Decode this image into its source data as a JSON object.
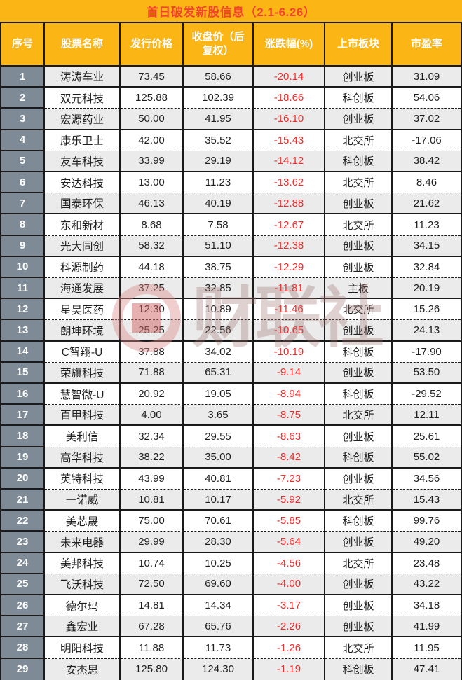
{
  "chart_data": {
    "type": "table",
    "title": "首日破发新股信息（2.1-6.26）",
    "columns": [
      "序号",
      "股票名称",
      "发行价格",
      "收盘价（后复权）",
      "涨跌幅(%)",
      "上市板块",
      "市盈率"
    ],
    "rows": [
      {
        "no": "1",
        "name": "涛涛车业",
        "issue": "73.45",
        "close": "58.66",
        "chg": "-20.14",
        "board": "创业板",
        "pe": "31.09"
      },
      {
        "no": "2",
        "name": "双元科技",
        "issue": "125.88",
        "close": "102.39",
        "chg": "-18.66",
        "board": "科创板",
        "pe": "54.06"
      },
      {
        "no": "3",
        "name": "宏源药业",
        "issue": "50.00",
        "close": "41.95",
        "chg": "-16.10",
        "board": "创业板",
        "pe": "37.02"
      },
      {
        "no": "4",
        "name": "康乐卫士",
        "issue": "42.00",
        "close": "35.52",
        "chg": "-15.43",
        "board": "北交所",
        "pe": "-17.06"
      },
      {
        "no": "5",
        "name": "友车科技",
        "issue": "33.99",
        "close": "29.19",
        "chg": "-14.12",
        "board": "科创板",
        "pe": "38.42"
      },
      {
        "no": "6",
        "name": "安达科技",
        "issue": "13.00",
        "close": "11.23",
        "chg": "-13.62",
        "board": "北交所",
        "pe": "8.46"
      },
      {
        "no": "7",
        "name": "国泰环保",
        "issue": "46.13",
        "close": "40.19",
        "chg": "-12.88",
        "board": "创业板",
        "pe": "21.62"
      },
      {
        "no": "8",
        "name": "东和新材",
        "issue": "8.68",
        "close": "7.58",
        "chg": "-12.67",
        "board": "北交所",
        "pe": "11.23"
      },
      {
        "no": "9",
        "name": "光大同创",
        "issue": "58.32",
        "close": "51.10",
        "chg": "-12.38",
        "board": "创业板",
        "pe": "34.15"
      },
      {
        "no": "10",
        "name": "科源制药",
        "issue": "44.18",
        "close": "38.75",
        "chg": "-12.29",
        "board": "创业板",
        "pe": "32.84"
      },
      {
        "no": "11",
        "name": "海通发展",
        "issue": "37.25",
        "close": "32.85",
        "chg": "-11.81",
        "board": "主板",
        "pe": "20.19"
      },
      {
        "no": "12",
        "name": "星昊医药",
        "issue": "12.30",
        "close": "10.89",
        "chg": "-11.46",
        "board": "北交所",
        "pe": "15.26"
      },
      {
        "no": "13",
        "name": "朗坤环境",
        "issue": "25.25",
        "close": "22.56",
        "chg": "-10.65",
        "board": "创业板",
        "pe": "24.13"
      },
      {
        "no": "14",
        "name": "C智翔-U",
        "issue": "37.88",
        "close": "34.02",
        "chg": "-10.19",
        "board": "科创板",
        "pe": "-17.90"
      },
      {
        "no": "15",
        "name": "荣旗科技",
        "issue": "71.88",
        "close": "65.31",
        "chg": "-9.14",
        "board": "创业板",
        "pe": "53.50"
      },
      {
        "no": "16",
        "name": "慧智微-U",
        "issue": "20.92",
        "close": "19.05",
        "chg": "-8.94",
        "board": "科创板",
        "pe": "-29.52"
      },
      {
        "no": "17",
        "name": "百甲科技",
        "issue": "4.00",
        "close": "3.65",
        "chg": "-8.75",
        "board": "北交所",
        "pe": "12.11"
      },
      {
        "no": "18",
        "name": "美利信",
        "issue": "32.34",
        "close": "29.55",
        "chg": "-8.63",
        "board": "创业板",
        "pe": "25.61"
      },
      {
        "no": "19",
        "name": "高华科技",
        "issue": "38.22",
        "close": "35.00",
        "chg": "-8.42",
        "board": "科创板",
        "pe": "55.02"
      },
      {
        "no": "20",
        "name": "英特科技",
        "issue": "43.99",
        "close": "40.81",
        "chg": "-7.23",
        "board": "创业板",
        "pe": "34.56"
      },
      {
        "no": "21",
        "name": "一诺威",
        "issue": "10.81",
        "close": "10.17",
        "chg": "-5.92",
        "board": "北交所",
        "pe": "15.43"
      },
      {
        "no": "22",
        "name": "美芯晟",
        "issue": "75.00",
        "close": "70.61",
        "chg": "-5.85",
        "board": "科创板",
        "pe": "99.76"
      },
      {
        "no": "23",
        "name": "未来电器",
        "issue": "29.99",
        "close": "28.30",
        "chg": "-5.64",
        "board": "创业板",
        "pe": "49.20"
      },
      {
        "no": "24",
        "name": "美邦科技",
        "issue": "10.74",
        "close": "10.25",
        "chg": "-4.56",
        "board": "北交所",
        "pe": "23.48"
      },
      {
        "no": "25",
        "name": "飞沃科技",
        "issue": "72.50",
        "close": "69.60",
        "chg": "-4.00",
        "board": "创业板",
        "pe": "43.22"
      },
      {
        "no": "26",
        "name": "德尔玛",
        "issue": "14.81",
        "close": "14.34",
        "chg": "-3.17",
        "board": "创业板",
        "pe": "34.18"
      },
      {
        "no": "27",
        "name": "鑫宏业",
        "issue": "67.28",
        "close": "65.76",
        "chg": "-2.26",
        "board": "创业板",
        "pe": "41.99"
      },
      {
        "no": "28",
        "name": "明阳科技",
        "issue": "11.88",
        "close": "11.73",
        "chg": "-1.26",
        "board": "北交所",
        "pe": "11.95"
      },
      {
        "no": "29",
        "name": "安杰思",
        "issue": "125.80",
        "close": "124.30",
        "chg": "-1.19",
        "board": "科创板",
        "pe": "47.41"
      }
    ],
    "layout": {
      "negative_change_color": "#f22b2b",
      "banner_color": "#fbb616",
      "title_color": "#f2432b",
      "serial_column_color": "#7e8a96",
      "alt_row_color": "#ebebeb",
      "grid": "solid lines after odd rows, dashed after even rows"
    }
  },
  "watermark": {
    "logo": "cailian-press-coin-logo",
    "text": "财联社"
  }
}
